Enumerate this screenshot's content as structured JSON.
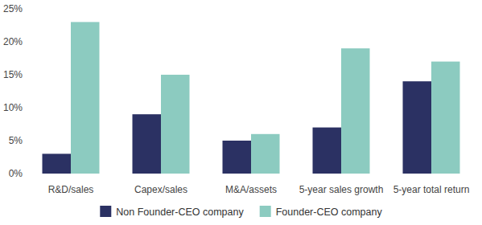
{
  "chart_data": {
    "type": "bar",
    "categories": [
      "R&D/sales",
      "Capex/sales",
      "M&A/assets",
      "5-year sales growth",
      "5-year total return"
    ],
    "series": [
      {
        "name": "Non Founder-CEO company",
        "color": "#2b3163",
        "values": [
          3,
          9,
          5,
          7,
          14
        ]
      },
      {
        "name": "Founder-CEO company",
        "color": "#8ccbc0",
        "values": [
          23,
          15,
          6,
          19,
          17
        ]
      }
    ],
    "ylim": [
      0,
      25
    ],
    "yticks": [
      {
        "value": 0,
        "label": "0%"
      },
      {
        "value": 5,
        "label": "5%"
      },
      {
        "value": 10,
        "label": "10%"
      },
      {
        "value": 15,
        "label": "15%"
      },
      {
        "value": 20,
        "label": "20%"
      },
      {
        "value": 25,
        "label": "25%"
      }
    ],
    "grid": false,
    "legend": "bottom"
  }
}
